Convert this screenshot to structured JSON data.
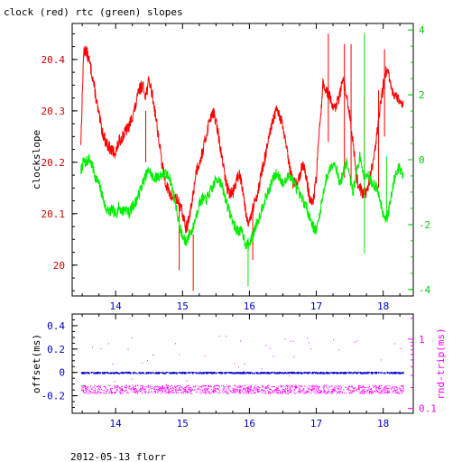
{
  "chart_data": [
    {
      "type": "line",
      "title": "clock (red) rtc (green) slopes",
      "xlabel": "",
      "xlim": [
        13.35,
        18.45
      ],
      "x_ticks": [
        "14",
        "15",
        "16",
        "17",
        "18"
      ],
      "ylabel_left": "clockslope",
      "ylim_left": [
        19.94,
        20.47
      ],
      "y_ticks_left": [
        "20",
        "20.1",
        "20.2",
        "20.3",
        "20.4"
      ],
      "ylabel_right": "",
      "ylim_right": [
        -4.2,
        4.2
      ],
      "y_ticks_right": [
        "-4",
        "-2",
        "0",
        "2",
        "4"
      ],
      "grid": false,
      "series": [
        {
          "name": "clock",
          "axis": "left",
          "color": "#ff0000",
          "x": [
            13.48,
            13.52,
            13.55,
            13.6,
            13.65,
            13.7,
            13.75,
            13.8,
            13.85,
            13.9,
            13.95,
            14.0,
            14.05,
            14.1,
            14.15,
            14.2,
            14.25,
            14.3,
            14.35,
            14.4,
            14.45,
            14.5,
            14.55,
            14.6,
            14.65,
            14.7,
            14.75,
            14.8,
            14.85,
            14.9,
            14.95,
            15.0,
            15.05,
            15.1,
            15.15,
            15.2,
            15.25,
            15.3,
            15.35,
            15.4,
            15.45,
            15.5,
            15.55,
            15.6,
            15.65,
            15.7,
            15.75,
            15.8,
            15.85,
            15.9,
            15.95,
            16.0,
            16.05,
            16.1,
            16.15,
            16.2,
            16.25,
            16.3,
            16.35,
            16.4,
            16.45,
            16.5,
            16.55,
            16.6,
            16.65,
            16.7,
            16.75,
            16.8,
            16.85,
            16.9,
            16.95,
            17.0,
            17.05,
            17.1,
            17.15,
            17.2,
            17.25,
            17.3,
            17.35,
            17.4,
            17.45,
            17.5,
            17.55,
            17.6,
            17.65,
            17.7,
            17.75,
            17.8,
            17.85,
            17.9,
            17.95,
            18.0,
            18.05,
            18.1,
            18.15,
            18.2,
            18.25,
            18.3
          ],
          "y": [
            20.24,
            20.41,
            20.42,
            20.4,
            20.37,
            20.33,
            20.29,
            20.26,
            20.24,
            20.23,
            20.22,
            20.22,
            20.24,
            20.25,
            20.26,
            20.27,
            20.29,
            20.31,
            20.34,
            20.35,
            20.33,
            20.36,
            20.33,
            20.29,
            20.24,
            20.19,
            20.16,
            20.14,
            20.13,
            20.13,
            20.12,
            20.1,
            20.07,
            20.09,
            20.13,
            20.18,
            20.2,
            20.22,
            20.25,
            20.28,
            20.3,
            20.28,
            20.24,
            20.2,
            20.16,
            20.14,
            20.14,
            20.16,
            20.18,
            20.15,
            20.1,
            20.08,
            20.11,
            20.13,
            20.16,
            20.19,
            20.22,
            20.25,
            20.28,
            20.3,
            20.29,
            20.27,
            20.23,
            20.19,
            20.16,
            20.16,
            20.17,
            20.2,
            20.17,
            20.13,
            20.12,
            20.17,
            20.27,
            20.35,
            20.34,
            20.33,
            20.3,
            20.31,
            20.33,
            20.36,
            20.33,
            20.29,
            20.24,
            20.17,
            20.15,
            20.14,
            20.14,
            20.17,
            20.2,
            20.25,
            20.3,
            20.35,
            20.38,
            20.36,
            20.33,
            20.33,
            20.31,
            20.32
          ]
        },
        {
          "name": "rtc",
          "axis": "right",
          "color": "#00ee00",
          "x": [
            13.48,
            13.52,
            13.55,
            13.6,
            13.65,
            13.7,
            13.75,
            13.8,
            13.85,
            13.9,
            13.95,
            14.0,
            14.05,
            14.1,
            14.15,
            14.2,
            14.25,
            14.3,
            14.35,
            14.4,
            14.45,
            14.5,
            14.55,
            14.6,
            14.65,
            14.7,
            14.75,
            14.8,
            14.85,
            14.9,
            14.95,
            15.0,
            15.05,
            15.1,
            15.15,
            15.2,
            15.25,
            15.3,
            15.35,
            15.4,
            15.45,
            15.5,
            15.55,
            15.6,
            15.65,
            15.7,
            15.75,
            15.8,
            15.85,
            15.9,
            15.95,
            16.0,
            16.05,
            16.1,
            16.15,
            16.2,
            16.25,
            16.3,
            16.35,
            16.4,
            16.45,
            16.5,
            16.55,
            16.6,
            16.65,
            16.7,
            16.75,
            16.8,
            16.85,
            16.9,
            16.95,
            17.0,
            17.05,
            17.1,
            17.15,
            17.2,
            17.25,
            17.3,
            17.35,
            17.4,
            17.45,
            17.5,
            17.55,
            17.6,
            17.65,
            17.7,
            17.75,
            17.8,
            17.85,
            17.9,
            17.95,
            18.0,
            18.05,
            18.1,
            18.15,
            18.2,
            18.25,
            18.3
          ],
          "y": [
            -0.35,
            -0.05,
            -0.1,
            0.05,
            -0.2,
            -0.55,
            -0.75,
            -1.1,
            -1.5,
            -1.6,
            -1.55,
            -1.7,
            -1.45,
            -1.6,
            -1.5,
            -1.65,
            -1.45,
            -1.3,
            -1.05,
            -0.75,
            -0.5,
            -0.3,
            -0.55,
            -0.55,
            -0.5,
            -0.45,
            -0.45,
            -0.5,
            -0.9,
            -1.4,
            -2.0,
            -2.4,
            -2.55,
            -2.3,
            -2.15,
            -1.75,
            -1.35,
            -1.2,
            -1.25,
            -1.05,
            -0.85,
            -0.6,
            -0.6,
            -0.9,
            -1.25,
            -1.6,
            -1.9,
            -2.15,
            -2.2,
            -2.25,
            -2.65,
            -2.6,
            -2.35,
            -2.0,
            -1.75,
            -1.4,
            -1.15,
            -0.9,
            -0.6,
            -0.45,
            -0.5,
            -0.75,
            -0.65,
            -0.45,
            -0.65,
            -0.85,
            -1.1,
            -1.25,
            -1.45,
            -1.75,
            -2.05,
            -2.2,
            -1.7,
            -1.05,
            -0.6,
            -0.3,
            -0.05,
            -0.25,
            -0.75,
            -0.45,
            -0.05,
            -0.55,
            -1.0,
            -0.4,
            0.1,
            -0.45,
            -0.45,
            -0.6,
            -0.75,
            -0.85,
            -1.2,
            -1.65,
            -1.85,
            -1.4,
            -0.75,
            -0.3,
            -0.25,
            -0.55
          ]
        }
      ],
      "annotations": {
        "clock_spikes": [
          {
            "x": 14.45,
            "y_low": 20.2,
            "y_high": 20.3
          },
          {
            "x": 14.95,
            "y_low": 19.99,
            "y_high": 20.12
          },
          {
            "x": 15.16,
            "y_low": 19.95,
            "y_high": 20.06
          },
          {
            "x": 16.05,
            "y_low": 20.01,
            "y_high": 20.11
          },
          {
            "x": 17.18,
            "y_low": 20.24,
            "y_high": 20.45
          },
          {
            "x": 17.42,
            "y_low": 20.17,
            "y_high": 20.43
          },
          {
            "x": 17.52,
            "y_low": 20.16,
            "y_high": 20.43
          },
          {
            "x": 17.72,
            "y_low": 20.13,
            "y_high": 20.33
          },
          {
            "x": 17.93,
            "y_low": 20.15,
            "y_high": 20.34
          },
          {
            "x": 18.02,
            "y_low": 20.25,
            "y_high": 20.42
          }
        ],
        "rtc_spikes": [
          {
            "x": 15.98,
            "y_low": -3.9,
            "y_high": -2.4
          },
          {
            "x": 17.72,
            "y_low": -2.9,
            "y_high": 3.9
          },
          {
            "x": 18.05,
            "y_low": -1.8,
            "y_high": 0.1
          }
        ]
      }
    },
    {
      "type": "scatter",
      "title": "",
      "xlabel": "",
      "xlim": [
        13.35,
        18.45
      ],
      "x_ticks": [
        "14",
        "15",
        "16",
        "17",
        "18"
      ],
      "ylabel_left": "offset(ms)",
      "ylim_left": [
        -0.35,
        0.5
      ],
      "y_ticks_left": [
        "-0.2",
        "0",
        "0.2",
        "0.4"
      ],
      "ylabel_right": "rnd-trip(ms)",
      "y_ticks_right": [
        "0.1",
        "1"
      ],
      "grid": false,
      "series": [
        {
          "name": "offset",
          "axis": "left",
          "color": "#0000cc",
          "x_range": [
            13.48,
            18.3
          ],
          "y": 0.0
        },
        {
          "name": "rnd-trip",
          "axis": "right",
          "color": "#ff00ff",
          "x_range": [
            13.48,
            18.3
          ],
          "y": 0.19
        }
      ]
    }
  ],
  "footer": "2012-05-13 florr"
}
